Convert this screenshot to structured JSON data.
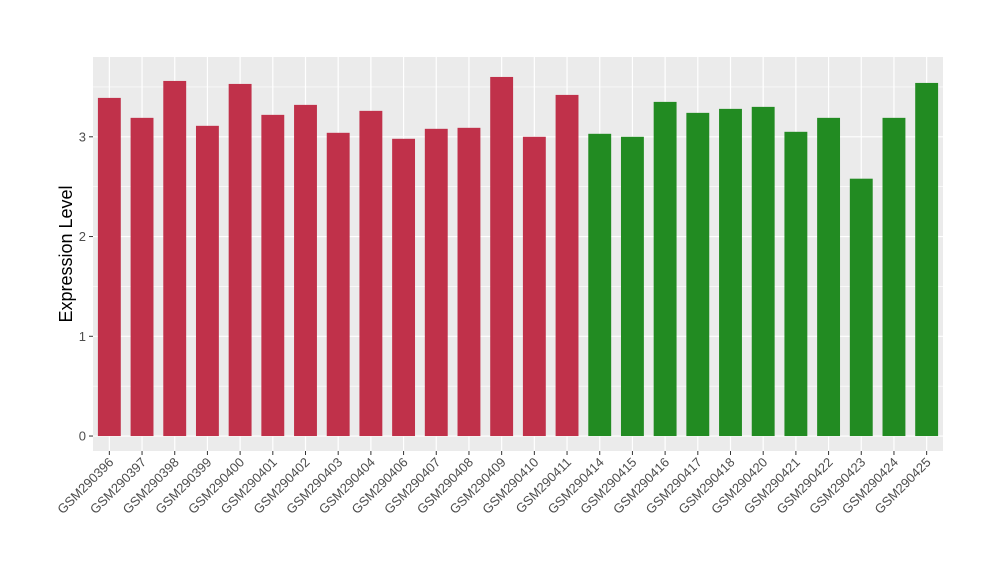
{
  "chart_data": {
    "type": "bar",
    "title": "",
    "xlabel": "",
    "ylabel": "Expression Level",
    "ylim": [
      -0.15,
      3.8
    ],
    "y_ticks": [
      0,
      1,
      2,
      3
    ],
    "grid": true,
    "categories": [
      "GSM290396",
      "GSM290397",
      "GSM290398",
      "GSM290399",
      "GSM290400",
      "GSM290401",
      "GSM290402",
      "GSM290403",
      "GSM290404",
      "GSM290406",
      "GSM290407",
      "GSM290408",
      "GSM290409",
      "GSM290410",
      "GSM290411",
      "GSM290414",
      "GSM290415",
      "GSM290416",
      "GSM290417",
      "GSM290418",
      "GSM290420",
      "GSM290421",
      "GSM290422",
      "GSM290423",
      "GSM290424",
      "GSM290425"
    ],
    "values": [
      3.39,
      3.19,
      3.56,
      3.11,
      3.53,
      3.22,
      3.32,
      3.04,
      3.26,
      2.98,
      3.08,
      3.09,
      3.6,
      3.0,
      3.42,
      3.03,
      3.0,
      3.35,
      3.24,
      3.28,
      3.3,
      3.05,
      3.19,
      2.58,
      3.19,
      3.54
    ],
    "bar_colors": [
      "#c0314a",
      "#c0314a",
      "#c0314a",
      "#c0314a",
      "#c0314a",
      "#c0314a",
      "#c0314a",
      "#c0314a",
      "#c0314a",
      "#c0314a",
      "#c0314a",
      "#c0314a",
      "#c0314a",
      "#c0314a",
      "#c0314a",
      "#228b22",
      "#228b22",
      "#228b22",
      "#228b22",
      "#228b22",
      "#228b22",
      "#228b22",
      "#228b22",
      "#228b22",
      "#228b22",
      "#228b22"
    ],
    "panel_background": "#ebebeb",
    "grid_color": "#ffffff"
  }
}
